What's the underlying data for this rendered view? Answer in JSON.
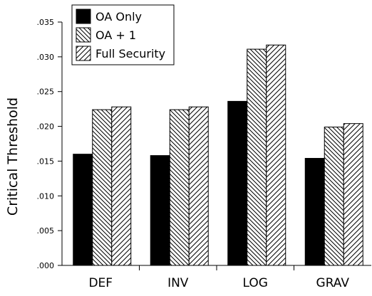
{
  "chart_data": {
    "type": "bar",
    "title": "",
    "xlabel": "",
    "ylabel": "Critical Threshold",
    "categories": [
      "DEF",
      "INV",
      "LOG",
      "GRAV"
    ],
    "series": [
      {
        "name": "OA Only",
        "values": [
          0.016,
          0.0158,
          0.0236,
          0.0154
        ],
        "fill": "solid-black"
      },
      {
        "name": "OA + 1",
        "values": [
          0.0224,
          0.0224,
          0.0311,
          0.0199
        ],
        "fill": "dense-backslash-hatch"
      },
      {
        "name": "Full Security",
        "values": [
          0.0228,
          0.0228,
          0.0317,
          0.0204
        ],
        "fill": "forward-slash-hatch"
      }
    ],
    "ylim": [
      0,
      0.035
    ],
    "yticks": [
      0,
      0.005,
      0.01,
      0.015,
      0.02,
      0.025,
      0.03,
      0.035
    ],
    "ytick_labels": [
      ".000",
      ".005",
      ".010",
      ".015",
      ".020",
      ".025",
      ".030",
      ".035"
    ],
    "grid": false,
    "legend_position": "top-left"
  }
}
